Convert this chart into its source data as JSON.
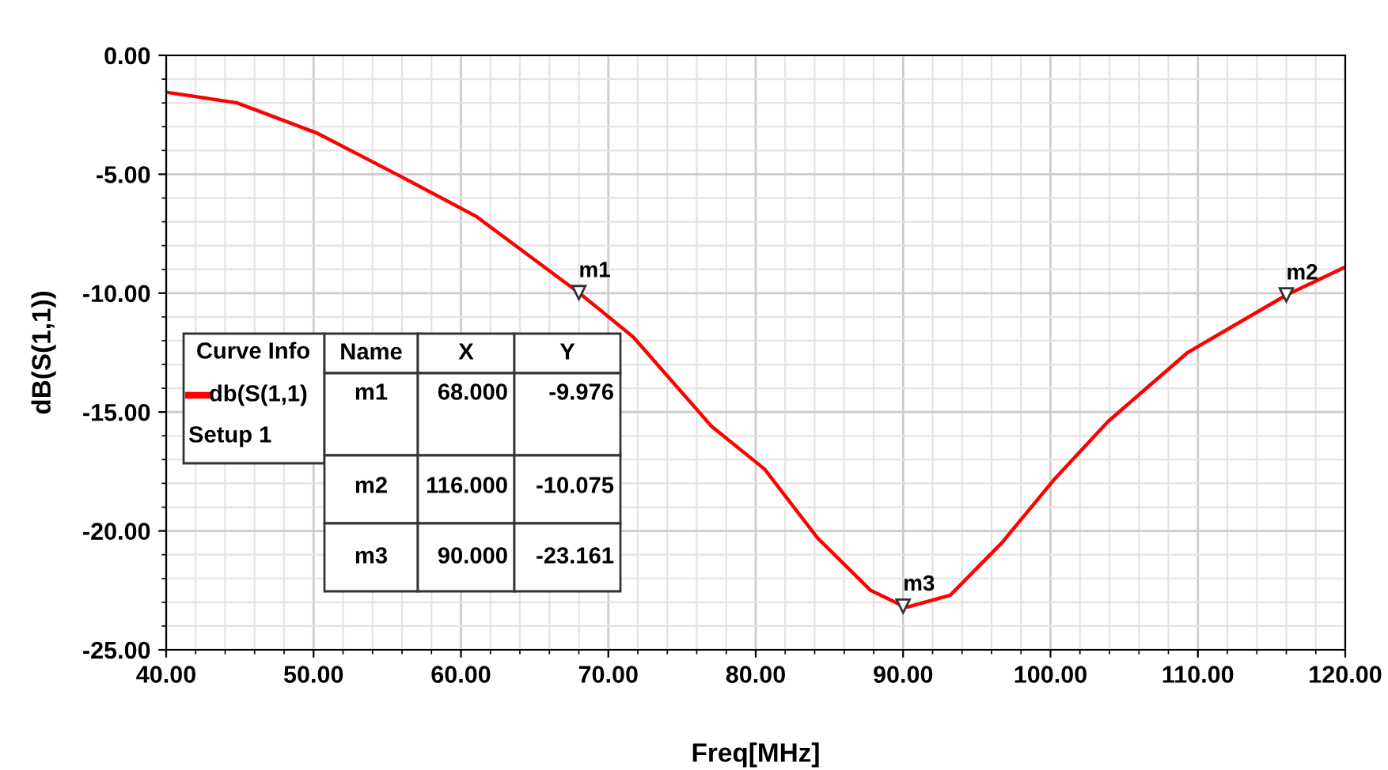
{
  "chart_data": {
    "type": "line",
    "xlabel": "Freq[MHz]",
    "ylabel": "dB(S(1,1))",
    "legend_title": "Curve Info",
    "legend": "left",
    "grid": true,
    "marker": "none",
    "line_style": "solid",
    "xlim": [
      40,
      120
    ],
    "xticks": [
      {
        "value": 40,
        "label": "40.00"
      },
      {
        "value": 50,
        "label": "50.00"
      },
      {
        "value": 60,
        "label": "60.00"
      },
      {
        "value": 70,
        "label": "70.00"
      },
      {
        "value": 80,
        "label": "80.00"
      },
      {
        "value": 90,
        "label": "90.00"
      },
      {
        "value": 100,
        "label": "100.00"
      },
      {
        "value": 110,
        "label": "110.00"
      },
      {
        "value": 120,
        "label": "120.00"
      }
    ],
    "ylim": [
      -25,
      0
    ],
    "yticks": [
      {
        "value": -25,
        "label": "-25.00"
      },
      {
        "value": -20,
        "label": "-20.00"
      },
      {
        "value": -15,
        "label": "-15.00"
      },
      {
        "value": -10,
        "label": "-10.00"
      },
      {
        "value": -5,
        "label": "-5.00"
      },
      {
        "value": 0,
        "label": "0.00"
      }
    ],
    "series": [
      {
        "name": "db(S(1,1)",
        "color": "#ff0000",
        "x": [
          40,
          44.8,
          50.2,
          55.6,
          61.0,
          68.0,
          71.7,
          77.0,
          80.6,
          84.2,
          87.8,
          90.0,
          90.3,
          93.2,
          96.7,
          100.3,
          103.9,
          109.3,
          116.0,
          120
        ],
        "values": [
          -1.55,
          -2.0,
          -3.26,
          -4.99,
          -6.76,
          -9.98,
          -11.85,
          -15.6,
          -17.4,
          -20.3,
          -22.5,
          -23.16,
          -23.2,
          -22.7,
          -20.5,
          -17.8,
          -15.4,
          -12.5,
          -10.08,
          -8.9
        ]
      }
    ],
    "annotations": [
      {
        "text": "m1",
        "x": 68,
        "y": -9.976
      },
      {
        "text": "m2",
        "x": 116,
        "y": -10.075
      },
      {
        "text": "m3",
        "x": 90,
        "y": -23.161
      },
      "Setup 1",
      "Name",
      "X",
      "Y",
      "m1",
      "68.000",
      "-9.976",
      "m2",
      "116.000",
      "-10.075",
      "m3",
      "90.000",
      "-23.161"
    ]
  }
}
